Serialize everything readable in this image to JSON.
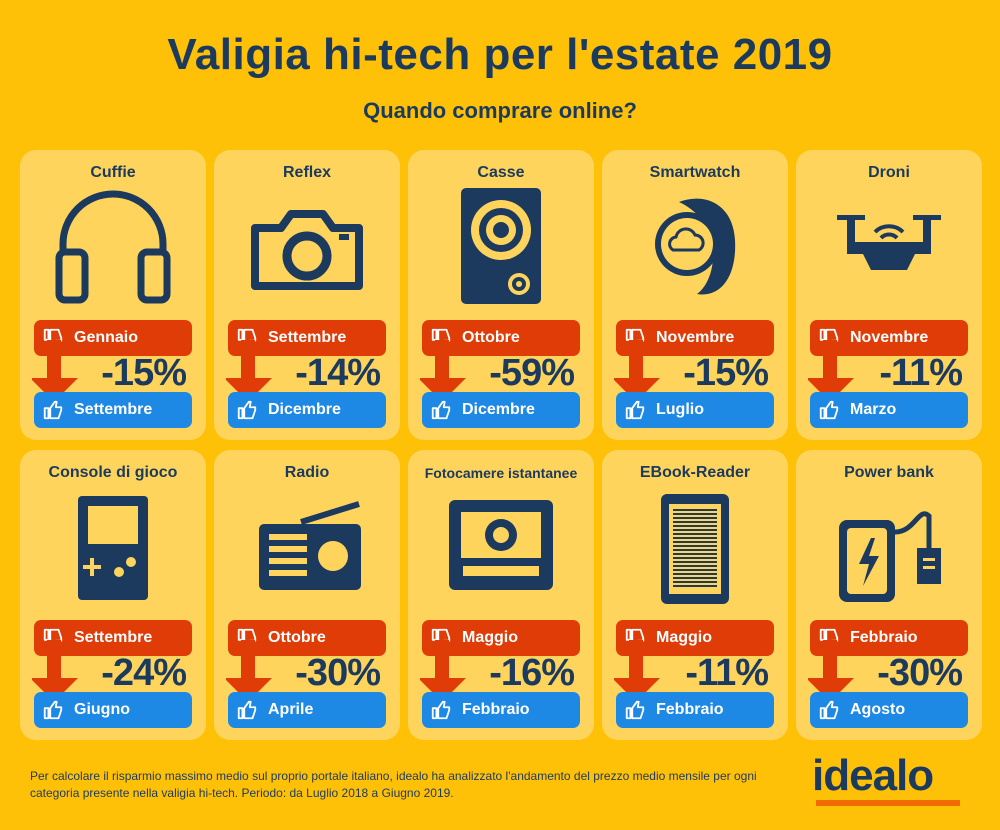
{
  "header": {
    "title": "Valigia hi-tech per l'estate 2019",
    "subtitle": "Quando comprare online?"
  },
  "colors": {
    "background": "#FFC107",
    "card": "#FFD45C",
    "navy": "#1B3A5E",
    "expensive_red": "#E03C08",
    "cheap_blue": "#1E88E5",
    "logo_orange": "#F06B00"
  },
  "cards": [
    {
      "title": "Cuffie",
      "icon": "headphones-icon",
      "expensive_month": "Gennaio",
      "saving": "-15%",
      "cheap_month": "Settembre"
    },
    {
      "title": "Reflex",
      "icon": "camera-icon",
      "expensive_month": "Settembre",
      "saving": "-14%",
      "cheap_month": "Dicembre"
    },
    {
      "title": "Casse",
      "icon": "speaker-icon",
      "expensive_month": "Ottobre",
      "saving": "-59%",
      "cheap_month": "Dicembre"
    },
    {
      "title": "Smartwatch",
      "icon": "smartwatch-icon",
      "expensive_month": "Novembre",
      "saving": "-15%",
      "cheap_month": "Luglio"
    },
    {
      "title": "Droni",
      "icon": "drone-icon",
      "expensive_month": "Novembre",
      "saving": "-11%",
      "cheap_month": "Marzo"
    },
    {
      "title": "Console di gioco",
      "icon": "game-console-icon",
      "expensive_month": "Settembre",
      "saving": "-24%",
      "cheap_month": "Giugno"
    },
    {
      "title": "Radio",
      "icon": "radio-icon",
      "expensive_month": "Ottobre",
      "saving": "-30%",
      "cheap_month": "Aprile"
    },
    {
      "title": "Fotocamere istantanee",
      "icon": "instant-camera-icon",
      "expensive_month": "Maggio",
      "saving": "-16%",
      "cheap_month": "Febbraio"
    },
    {
      "title": "EBook-Reader",
      "icon": "ebook-reader-icon",
      "expensive_month": "Maggio",
      "saving": "-11%",
      "cheap_month": "Febbraio"
    },
    {
      "title": "Power bank",
      "icon": "power-bank-icon",
      "expensive_month": "Febbraio",
      "saving": "-30%",
      "cheap_month": "Agosto"
    }
  ],
  "footnote": "Per calcolare il risparmio massimo medio sul proprio portale italiano, idealo ha analizzato l'andamento del prezzo medio mensile per ogni categoria presente nella valigia hi-tech. Periodo: da Luglio 2018 a Giugno 2019.",
  "logo": "idealo"
}
